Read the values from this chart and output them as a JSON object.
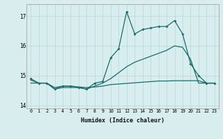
{
  "xlabel": "Humidex (Indice chaleur)",
  "x": [
    0,
    1,
    2,
    3,
    4,
    5,
    6,
    7,
    8,
    9,
    10,
    11,
    12,
    13,
    14,
    15,
    16,
    17,
    18,
    19,
    20,
    21,
    22,
    23
  ],
  "line1": [
    14.9,
    14.75,
    14.75,
    14.55,
    14.65,
    14.65,
    14.6,
    14.55,
    14.75,
    14.8,
    15.6,
    15.9,
    17.15,
    16.4,
    16.55,
    16.6,
    16.65,
    16.65,
    16.85,
    16.4,
    15.4,
    15.0,
    14.75,
    14.75
  ],
  "line2": [
    14.85,
    14.75,
    14.75,
    14.55,
    14.6,
    14.6,
    14.6,
    14.55,
    14.65,
    14.75,
    14.9,
    15.1,
    15.3,
    15.45,
    15.55,
    15.65,
    15.75,
    15.85,
    16.0,
    15.95,
    15.55,
    14.75,
    14.75,
    14.75
  ],
  "line3": [
    14.75,
    14.75,
    14.75,
    14.6,
    14.65,
    14.65,
    14.62,
    14.6,
    14.62,
    14.65,
    14.7,
    14.72,
    14.74,
    14.76,
    14.78,
    14.8,
    14.82,
    14.82,
    14.83,
    14.83,
    14.83,
    14.83,
    14.75,
    14.75
  ],
  "line_color": "#1a6b6b",
  "bg_color": "#d8eeee",
  "grid_color": "#b8d8d8",
  "ylim": [
    13.9,
    17.4
  ],
  "xlim": [
    -0.5,
    23.5
  ],
  "yticks": [
    14,
    15,
    16,
    17
  ]
}
